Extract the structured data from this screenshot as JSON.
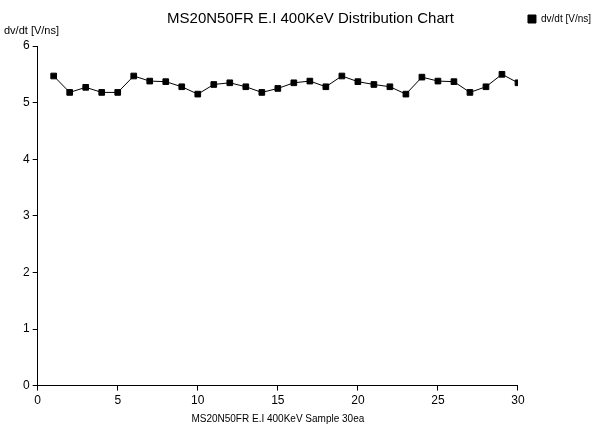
{
  "chart_data": {
    "type": "line",
    "title": "MS20N50FR E.I 400KeV Distribution Chart",
    "x_label": "MS20N50FR E.I 400KeV Sample 30ea",
    "y_label": "dv/dt [V/ns]",
    "x": [
      1,
      2,
      3,
      4,
      5,
      6,
      7,
      8,
      9,
      10,
      11,
      12,
      13,
      14,
      15,
      16,
      17,
      18,
      19,
      20,
      21,
      22,
      23,
      24,
      25,
      26,
      27,
      28,
      29,
      30
    ],
    "series": [
      {
        "name": "dv/dt [V/ns]",
        "color": "#000000",
        "marker": "square",
        "line_style": "solid",
        "values": [
          5.47,
          5.18,
          5.27,
          5.18,
          5.18,
          5.47,
          5.38,
          5.37,
          5.28,
          5.15,
          5.32,
          5.35,
          5.28,
          5.18,
          5.25,
          5.35,
          5.38,
          5.28,
          5.47,
          5.37,
          5.32,
          5.28,
          5.15,
          5.45,
          5.38,
          5.37,
          5.18,
          5.28,
          5.5,
          5.35
        ]
      }
    ],
    "xlim": [
      0,
      30
    ],
    "xticks": [
      0,
      5,
      10,
      15,
      20,
      25,
      30
    ],
    "ylim": [
      0,
      6
    ],
    "yticks": [
      0,
      1,
      2,
      3,
      4,
      5,
      6
    ],
    "grid": false,
    "legend": "top-right"
  }
}
